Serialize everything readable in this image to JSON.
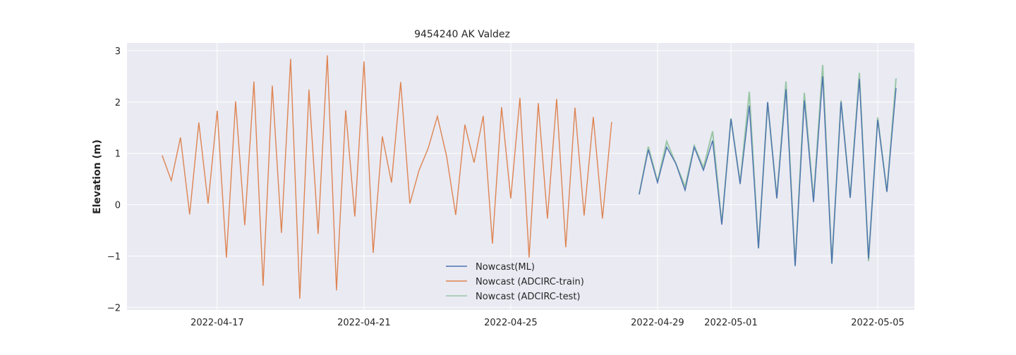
{
  "chart_data": {
    "type": "line",
    "title": "9454240 AK Valdez",
    "xlabel": "",
    "ylabel": "Elevation (m)",
    "xlim": [
      "2022-04-14T13:00",
      "2022-05-06T00:00"
    ],
    "ylim": [
      -2.05,
      3.15
    ],
    "x_ticks": [
      "2022-04-17",
      "2022-04-21",
      "2022-04-25",
      "2022-04-29",
      "2022-05-01",
      "2022-05-05"
    ],
    "y_ticks": [
      -2,
      -1,
      0,
      1,
      2,
      3
    ],
    "y_tick_labels": [
      "−2",
      "−1",
      "0",
      "1",
      "2",
      "3"
    ],
    "grid": true,
    "legend_position": "lower-center",
    "background": "#eaeaf2",
    "series": [
      {
        "name": "Nowcast(ML)",
        "color": "#4c72b0",
        "start": "2022-04-28T12:00",
        "step_hours": 6,
        "values": [
          0.2,
          1.07,
          0.43,
          1.12,
          0.8,
          0.28,
          1.12,
          0.67,
          1.25,
          -0.39,
          1.67,
          0.4,
          1.93,
          -0.85,
          2.0,
          0.12,
          2.25,
          -1.2,
          2.03,
          0.05,
          2.5,
          -1.15,
          2.0,
          0.13,
          2.45,
          -1.05,
          1.65,
          0.25,
          2.27
        ]
      },
      {
        "name": "Nowcast (ADCIRC-train)",
        "color": "#dd8452",
        "start": "2022-04-15T12:00",
        "step_hours": 6,
        "values": [
          0.96,
          0.47,
          1.31,
          -0.19,
          1.6,
          0.02,
          1.83,
          -1.03,
          2.01,
          -0.4,
          2.4,
          -1.58,
          2.32,
          -0.55,
          2.84,
          -1.83,
          2.24,
          -0.57,
          2.91,
          -1.67,
          1.84,
          -0.23,
          2.79,
          -0.94,
          1.33,
          0.43,
          2.39,
          0.02,
          0.67,
          1.1,
          1.72,
          0.95,
          -0.2,
          1.56,
          0.82,
          1.73,
          -0.76,
          1.9,
          0.12,
          2.08,
          -1.03,
          1.98,
          -0.27,
          2.06,
          -0.83,
          1.89,
          -0.21,
          1.71,
          -0.27,
          1.61
        ]
      },
      {
        "name": "Nowcast (ADCIRC-test)",
        "color": "#55a868",
        "start": "2022-04-28T12:00",
        "step_hours": 6,
        "values": [
          0.2,
          1.13,
          0.45,
          1.23,
          0.8,
          0.35,
          1.15,
          0.72,
          1.43,
          -0.37,
          1.68,
          0.43,
          2.2,
          -0.85,
          1.99,
          0.14,
          2.4,
          -1.18,
          2.18,
          0.1,
          2.72,
          -1.15,
          2.03,
          0.15,
          2.57,
          -1.1,
          1.7,
          0.25,
          2.46
        ]
      }
    ]
  }
}
